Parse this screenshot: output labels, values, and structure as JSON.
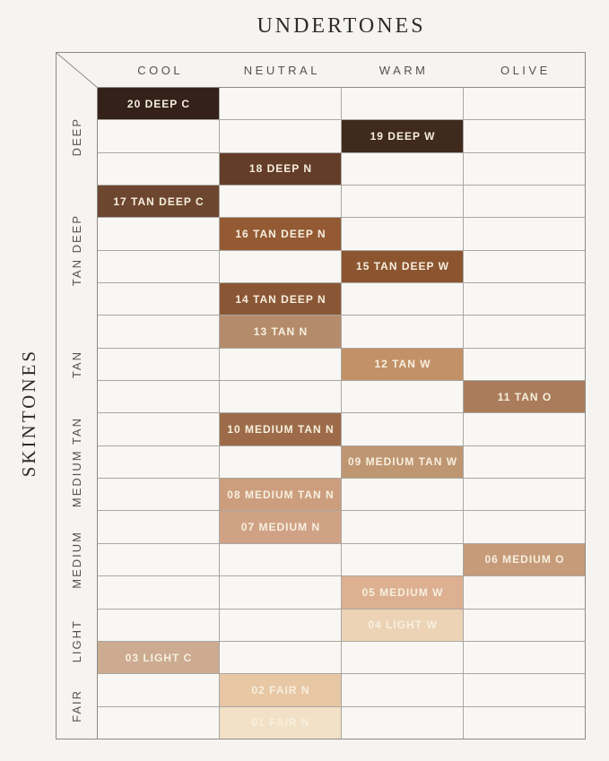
{
  "chart_data": {
    "type": "heatmap",
    "title": "UNDERTONES",
    "ylabel": "SKINTONES",
    "x_categories": [
      "COOL",
      "NEUTRAL",
      "WARM",
      "OLIVE"
    ],
    "y_groups": [
      {
        "label": "DEEP",
        "rows": 3
      },
      {
        "label": "TAN DEEP",
        "rows": 4
      },
      {
        "label": "TAN",
        "rows": 3
      },
      {
        "label": "MEDIUM TAN",
        "rows": 3
      },
      {
        "label": "MEDIUM",
        "rows": 3
      },
      {
        "label": "LIGHT",
        "rows": 2
      },
      {
        "label": "FAIR",
        "rows": 2
      }
    ],
    "total_rows": 20,
    "grid": true,
    "legend_position": "none",
    "cells": [
      {
        "row": 1,
        "shade": "20 DEEP C",
        "undertone": "COOL",
        "skintone": "DEEP",
        "color": "#33211a"
      },
      {
        "row": 2,
        "shade": "19 DEEP W",
        "undertone": "WARM",
        "skintone": "DEEP",
        "color": "#402a1d"
      },
      {
        "row": 3,
        "shade": "18 DEEP N",
        "undertone": "NEUTRAL",
        "skintone": "DEEP",
        "color": "#643d28"
      },
      {
        "row": 4,
        "shade": "17 TAN DEEP C",
        "undertone": "COOL",
        "skintone": "TAN DEEP",
        "color": "#6d462f"
      },
      {
        "row": 5,
        "shade": "16 TAN DEEP N",
        "undertone": "NEUTRAL",
        "skintone": "TAN DEEP",
        "color": "#935a34"
      },
      {
        "row": 6,
        "shade": "15 TAN DEEP W",
        "undertone": "WARM",
        "skintone": "TAN DEEP",
        "color": "#8c5530"
      },
      {
        "row": 7,
        "shade": "14 TAN DEEP N",
        "undertone": "NEUTRAL",
        "skintone": "TAN DEEP",
        "color": "#8a5736"
      },
      {
        "row": 8,
        "shade": "13 TAN N",
        "undertone": "NEUTRAL",
        "skintone": "TAN",
        "color": "#b58c6b"
      },
      {
        "row": 9,
        "shade": "12 TAN W",
        "undertone": "WARM",
        "skintone": "TAN",
        "color": "#c29167"
      },
      {
        "row": 10,
        "shade": "11 TAN O",
        "undertone": "OLIVE",
        "skintone": "TAN",
        "color": "#aa7c5b"
      },
      {
        "row": 11,
        "shade": "10 MEDIUM TAN N",
        "undertone": "NEUTRAL",
        "skintone": "MEDIUM TAN",
        "color": "#9d6b49"
      },
      {
        "row": 12,
        "shade": "09 MEDIUM TAN W",
        "undertone": "WARM",
        "skintone": "MEDIUM TAN",
        "color": "#bf9672"
      },
      {
        "row": 13,
        "shade": "08 MEDIUM TAN N",
        "undertone": "NEUTRAL",
        "skintone": "MEDIUM TAN",
        "color": "#cc9e7e"
      },
      {
        "row": 14,
        "shade": "07 MEDIUM N",
        "undertone": "NEUTRAL",
        "skintone": "MEDIUM",
        "color": "#d0a285"
      },
      {
        "row": 15,
        "shade": "06 MEDIUM O",
        "undertone": "OLIVE",
        "skintone": "MEDIUM",
        "color": "#c69b79"
      },
      {
        "row": 16,
        "shade": "05 MEDIUM W",
        "undertone": "WARM",
        "skintone": "MEDIUM",
        "color": "#dcb091"
      },
      {
        "row": 17,
        "shade": "04 LIGHT W",
        "undertone": "WARM",
        "skintone": "LIGHT",
        "color": "#edd3b6"
      },
      {
        "row": 18,
        "shade": "03 LIGHT C",
        "undertone": "COOL",
        "skintone": "LIGHT",
        "color": "#ccab90"
      },
      {
        "row": 19,
        "shade": "02 FAIR N",
        "undertone": "NEUTRAL",
        "skintone": "FAIR",
        "color": "#e8c7a4"
      },
      {
        "row": 20,
        "shade": "01 FAIR N",
        "undertone": "NEUTRAL",
        "skintone": "FAIR",
        "color": "#f2e1c6"
      }
    ],
    "colors": {
      "shade_label_text": "#f7efdf",
      "axis_text": "#55524e",
      "title_text": "#2e2c29",
      "outer_border": "#8d8a85",
      "grid_line": "#aaa7a2",
      "empty_cell": "#f8f7f4",
      "page_background": "#f5f4f1"
    }
  }
}
